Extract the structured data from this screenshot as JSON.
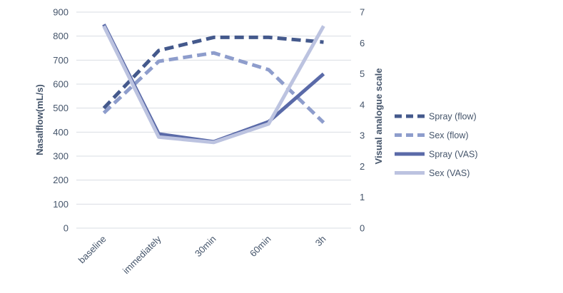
{
  "chart_data": {
    "type": "line",
    "categories": [
      "baseline",
      "immediately",
      "30min",
      "60min",
      "3h"
    ],
    "y_left": {
      "label": "Nasalflow(mL/s)",
      "ylim": [
        0,
        900
      ],
      "ticks": [
        0,
        100,
        200,
        300,
        400,
        500,
        600,
        700,
        800,
        900
      ]
    },
    "y_right": {
      "label": "Visual analogue scale",
      "ylim": [
        0,
        7
      ],
      "ticks": [
        0,
        1,
        2,
        3,
        4,
        5,
        6,
        7
      ]
    },
    "grid": true,
    "legend_position": "right",
    "series": [
      {
        "name": "Spray (flow)",
        "axis": "left",
        "style": "dashed",
        "color": "#44598c",
        "values": [
          500,
          740,
          795,
          795,
          775
        ]
      },
      {
        "name": "Sex (flow)",
        "axis": "left",
        "style": "dashed",
        "color": "#8e9dcc",
        "values": [
          480,
          695,
          730,
          660,
          440
        ]
      },
      {
        "name": "Spray (VAS)",
        "axis": "right",
        "style": "solid",
        "color": "#5a6aa8",
        "values": [
          6.6,
          3.05,
          2.8,
          3.45,
          5.0
        ]
      },
      {
        "name": "Sex (VAS)",
        "axis": "right",
        "style": "solid",
        "color": "#bcc3e0",
        "values": [
          6.55,
          2.95,
          2.78,
          3.38,
          6.55
        ]
      }
    ]
  }
}
